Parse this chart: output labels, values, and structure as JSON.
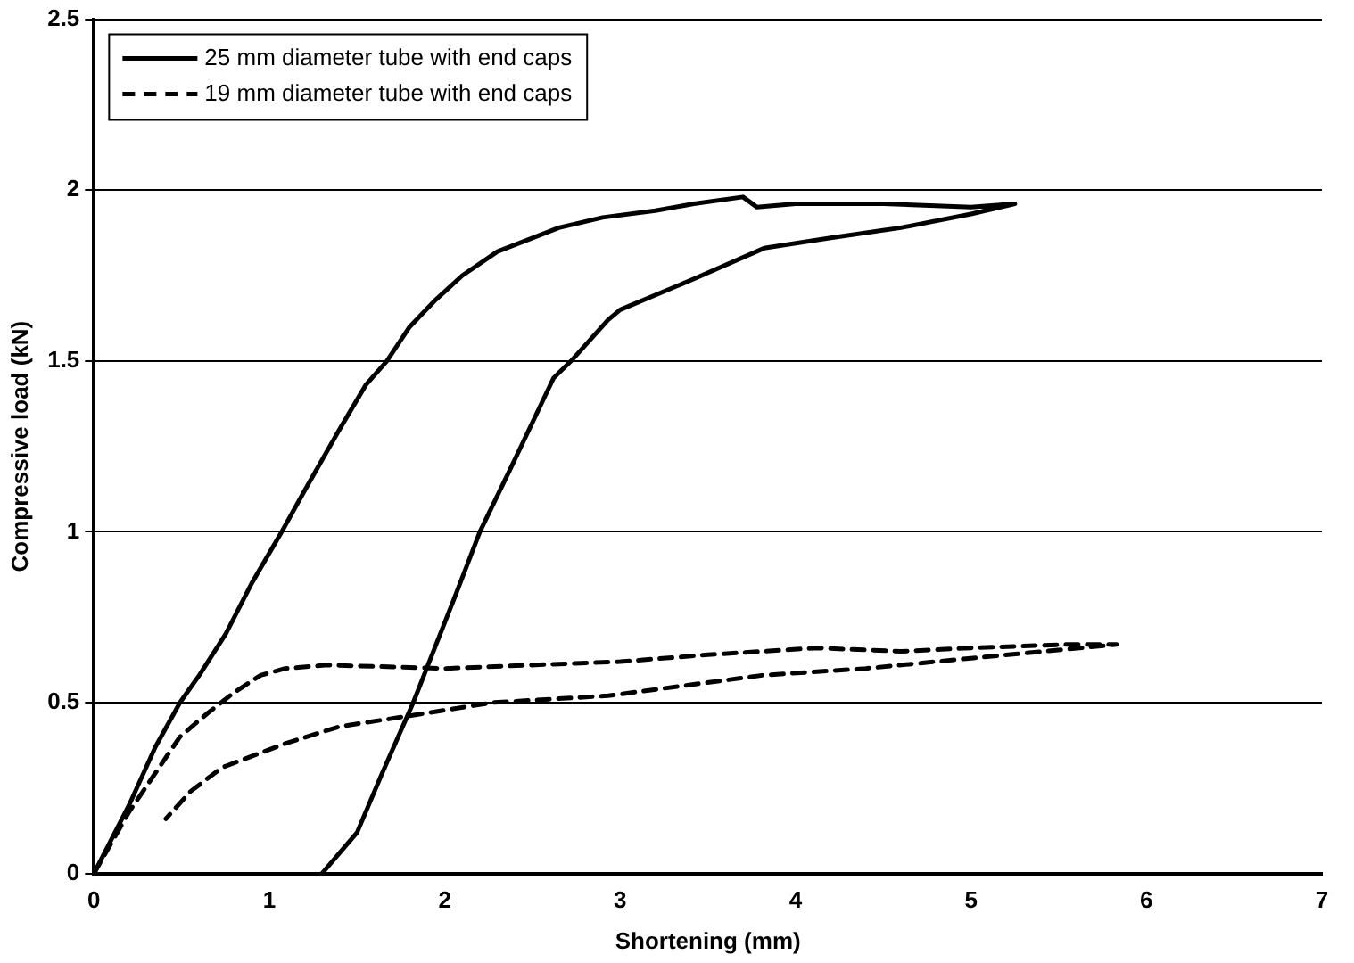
{
  "chart_data": {
    "type": "line",
    "xlabel": "Shortening (mm)",
    "ylabel": "Compressive load (kN)",
    "xlim": [
      0,
      7
    ],
    "xticks": [
      0,
      1,
      2,
      3,
      4,
      5,
      6,
      7
    ],
    "ylim": [
      0,
      2.5
    ],
    "yticks": [
      0,
      0.5,
      1,
      1.5,
      2,
      2.5
    ],
    "grid": "y",
    "legend": "top left",
    "marker": "none",
    "series": [
      {
        "name": "25 mm diameter tube with end caps",
        "color": "#000000",
        "line_style": "solid",
        "x": [
          0,
          0.2,
          0.35,
          0.49,
          0.6,
          0.75,
          0.9,
          1.07,
          1.2,
          1.4,
          1.55,
          1.67,
          1.8,
          1.95,
          2.1,
          2.3,
          2.5,
          2.65,
          2.9,
          3.2,
          3.42,
          3.7,
          3.78,
          4.0,
          4.5,
          5.0,
          5.25,
          5.0,
          4.6,
          4.2,
          3.82,
          3.42,
          3.0,
          2.93,
          2.72,
          2.62,
          2.37,
          2.2,
          2.05,
          1.82,
          1.64,
          1.5,
          1.3
        ],
        "values": [
          0,
          0.2,
          0.37,
          0.5,
          0.58,
          0.7,
          0.85,
          1.0,
          1.12,
          1.3,
          1.43,
          1.5,
          1.6,
          1.68,
          1.75,
          1.82,
          1.86,
          1.89,
          1.92,
          1.94,
          1.96,
          1.98,
          1.95,
          1.96,
          1.96,
          1.95,
          1.96,
          1.93,
          1.89,
          1.86,
          1.83,
          1.74,
          1.65,
          1.62,
          1.5,
          1.45,
          1.18,
          1.0,
          0.8,
          0.5,
          0.29,
          0.12,
          0
        ]
      },
      {
        "name": "19 mm diameter tube with end caps",
        "color": "#000000",
        "line_style": "dashed",
        "x": [
          0,
          0.2,
          0.49,
          0.65,
          0.8,
          0.95,
          1.09,
          1.33,
          2.0,
          3.0,
          3.5,
          4.12,
          4.6,
          5.0,
          5.54,
          5.83,
          5.0,
          4.4,
          3.81,
          2.93,
          2.27,
          1.78,
          1.4,
          1.09,
          0.73,
          0.55,
          0.41
        ],
        "values": [
          0,
          0.18,
          0.4,
          0.47,
          0.53,
          0.58,
          0.6,
          0.61,
          0.6,
          0.62,
          0.64,
          0.66,
          0.65,
          0.66,
          0.67,
          0.67,
          0.63,
          0.6,
          0.58,
          0.52,
          0.5,
          0.46,
          0.43,
          0.38,
          0.31,
          0.24,
          0.16
        ]
      }
    ]
  }
}
